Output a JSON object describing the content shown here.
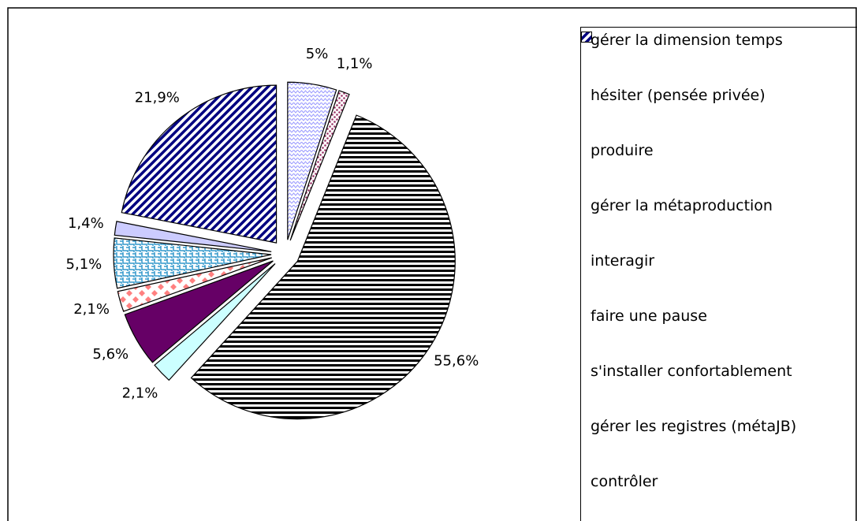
{
  "chart_data": {
    "type": "pie",
    "categories": [
      "gérer la dimension temps",
      "hésiter (pensée privée)",
      "produire",
      "gérer la métaproduction",
      "interagir",
      "faire une pause",
      "s'installer confortablement",
      "gérer les registres (métaJB)",
      "contrôler"
    ],
    "values": [
      5,
      1.1,
      55.6,
      2.1,
      5.6,
      2.1,
      5.1,
      1.4,
      21.9
    ],
    "value_labels": [
      "5%",
      "1,1%",
      "55,6%",
      "2,1%",
      "5,6%",
      "2,1%",
      "5,1%",
      "1,4%",
      "21,9%"
    ],
    "colors": [
      "#9999ff",
      "#993366",
      "#000000",
      "#ccffff",
      "#660066",
      "#ff8080",
      "#3399cc",
      "#ccccff",
      "#000080"
    ],
    "patterns": [
      "zigzag",
      "dots",
      "hstripes",
      "solid",
      "solid",
      "diamonds",
      "weave",
      "solid",
      "diagonal"
    ],
    "legend": "right"
  }
}
